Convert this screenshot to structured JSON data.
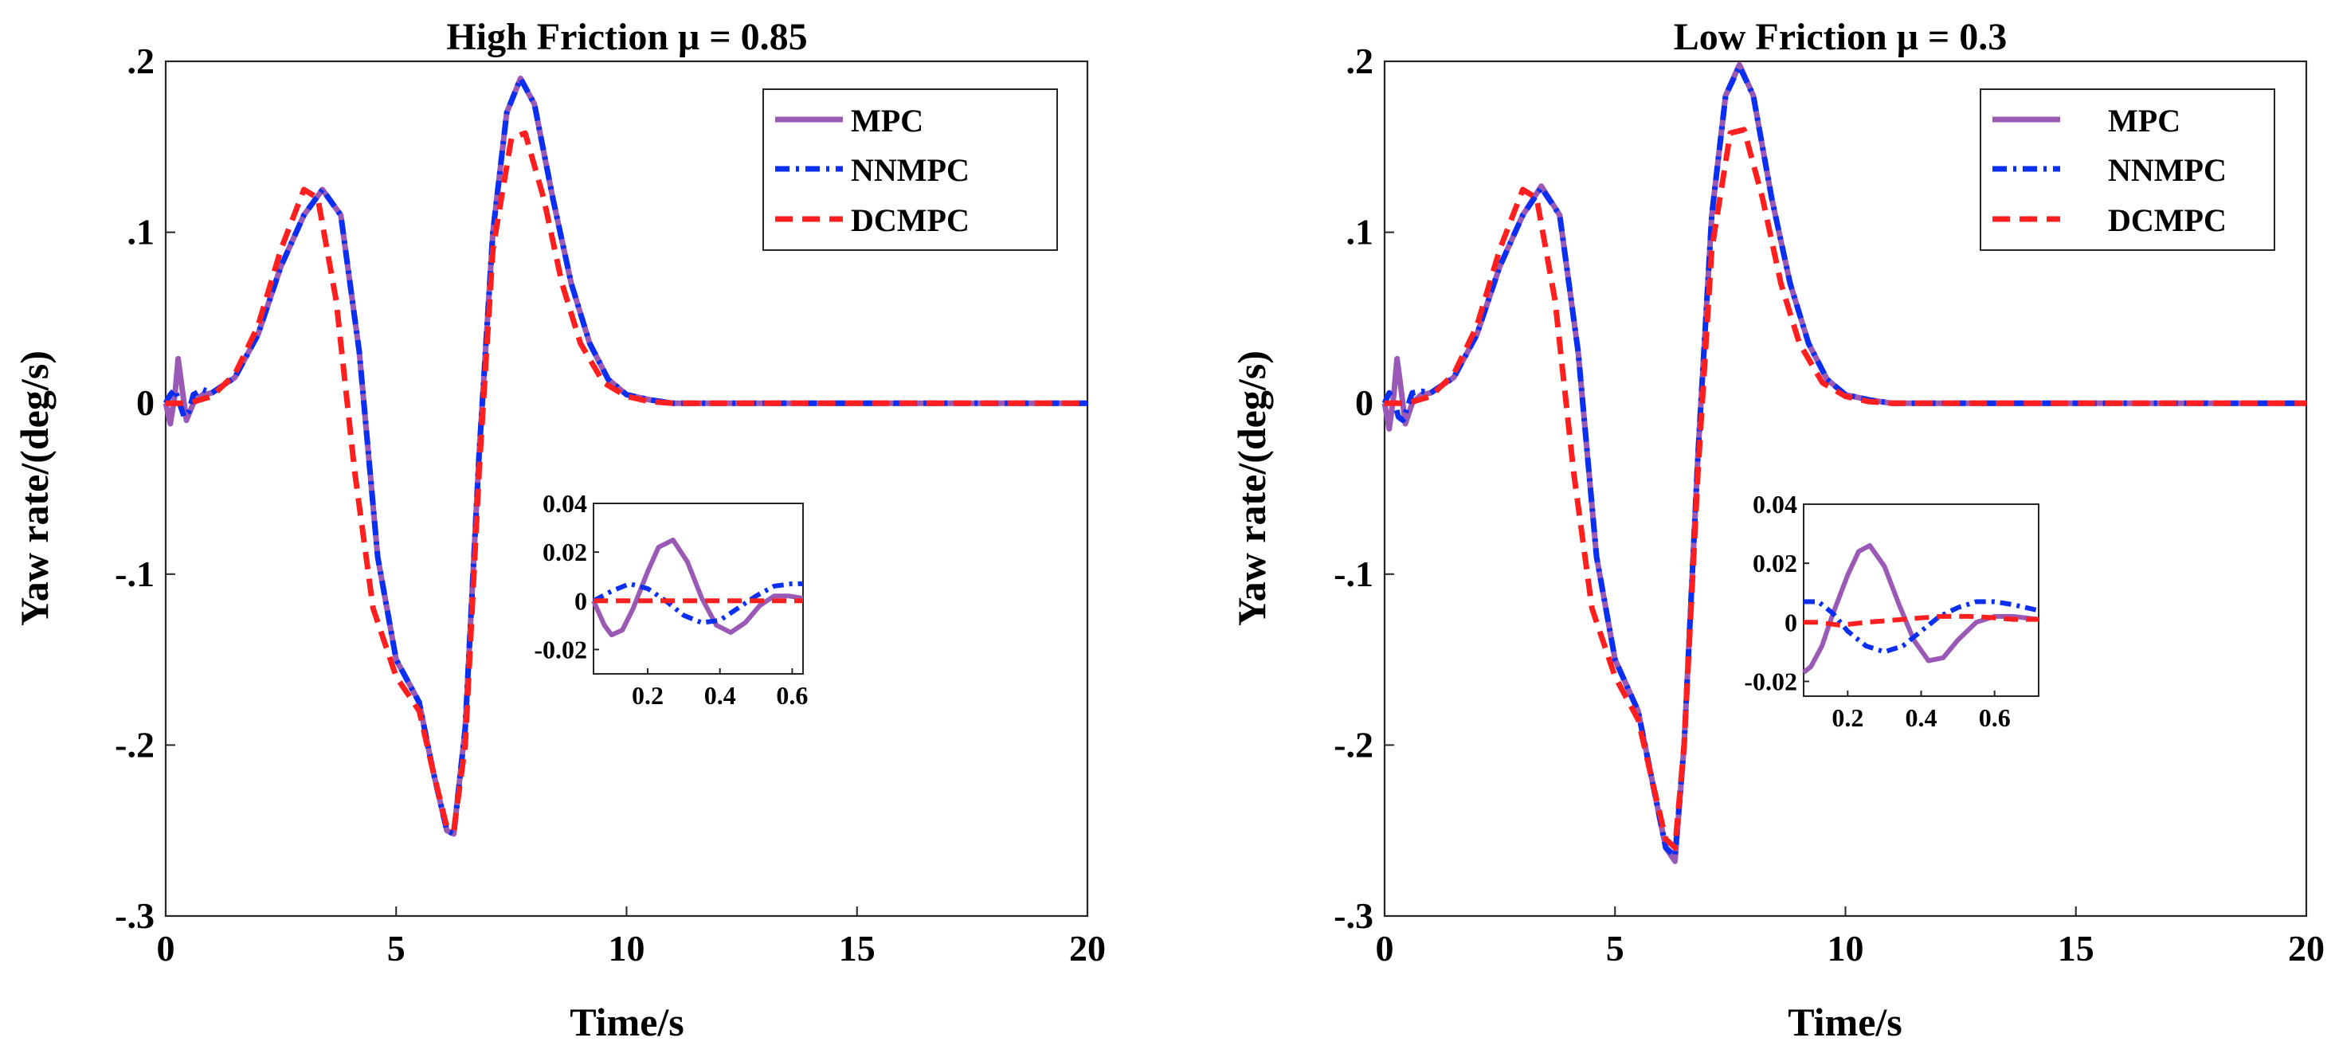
{
  "chart_data": [
    {
      "type": "line",
      "title": "High Friction μ = 0.85",
      "xlabel": "Time/s",
      "ylabel": "Yaw rate/(deg/s)",
      "xlim": [
        0,
        20
      ],
      "ylim": [
        -0.3,
        0.2
      ],
      "xticks": [
        0,
        5,
        10,
        15,
        20
      ],
      "yticks": [
        -0.3,
        -0.2,
        -0.1,
        0,
        0.1,
        0.2
      ],
      "grid": false,
      "legend_position": "top-right",
      "series": [
        {
          "name": "MPC",
          "color": "#9b59b6",
          "style": "solid",
          "x": [
            0,
            0.1,
            0.2,
            0.27,
            0.35,
            0.45,
            0.6,
            0.8,
            1,
            1.5,
            2,
            2.5,
            3,
            3.4,
            3.8,
            4.2,
            4.6,
            5,
            5.5,
            5.8,
            6.1,
            6.25,
            6.5,
            6.8,
            7.1,
            7.4,
            7.7,
            8,
            8.4,
            8.8,
            9.2,
            9.6,
            10,
            10.5,
            11,
            12,
            15,
            20
          ],
          "y": [
            0,
            -0.012,
            0.005,
            0.026,
            0.01,
            -0.01,
            0,
            0.005,
            0.006,
            0.015,
            0.04,
            0.08,
            0.11,
            0.125,
            0.11,
            0.03,
            -0.09,
            -0.15,
            -0.175,
            -0.215,
            -0.25,
            -0.252,
            -0.19,
            -0.03,
            0.1,
            0.17,
            0.19,
            0.175,
            0.12,
            0.07,
            0.035,
            0.014,
            0.005,
            0.002,
            0,
            0,
            0,
            0
          ]
        },
        {
          "name": "NNMPC",
          "color": "#0a2ff0",
          "style": "dashdot",
          "x": [
            0,
            0.1,
            0.2,
            0.3,
            0.4,
            0.5,
            0.6,
            0.8,
            1,
            1.5,
            2,
            2.5,
            3,
            3.4,
            3.8,
            4.2,
            4.6,
            5,
            5.5,
            5.8,
            6.1,
            6.25,
            6.5,
            6.8,
            7.1,
            7.4,
            7.7,
            8,
            8.4,
            8.8,
            9.2,
            9.6,
            10,
            10.5,
            11,
            12,
            15,
            20
          ],
          "y": [
            0,
            0.005,
            0.008,
            0,
            -0.008,
            -0.005,
            0.005,
            0.008,
            0.006,
            0.015,
            0.04,
            0.08,
            0.11,
            0.125,
            0.11,
            0.03,
            -0.09,
            -0.15,
            -0.175,
            -0.215,
            -0.25,
            -0.252,
            -0.19,
            -0.03,
            0.1,
            0.17,
            0.19,
            0.175,
            0.12,
            0.07,
            0.035,
            0.014,
            0.005,
            0.002,
            0,
            0,
            0,
            0
          ]
        },
        {
          "name": "DCMPC",
          "color": "#ff1f1f",
          "style": "dashed",
          "x": [
            0,
            0.5,
            1,
            1.5,
            2,
            2.5,
            3,
            3.3,
            3.7,
            4.1,
            4.5,
            5,
            5.5,
            5.8,
            6.1,
            6.25,
            6.5,
            6.8,
            7.1,
            7.5,
            7.8,
            8.2,
            8.6,
            9,
            9.5,
            10,
            10.5,
            11,
            12,
            15,
            20
          ],
          "y": [
            0,
            0,
            0.004,
            0.017,
            0.045,
            0.09,
            0.125,
            0.12,
            0.06,
            -0.04,
            -0.12,
            -0.16,
            -0.18,
            -0.215,
            -0.248,
            -0.25,
            -0.2,
            -0.04,
            0.09,
            0.155,
            0.158,
            0.12,
            0.07,
            0.035,
            0.012,
            0.004,
            0.001,
            0,
            0,
            0,
            0
          ]
        }
      ],
      "inset": {
        "xlim": [
          0.05,
          0.63
        ],
        "ylim": [
          -0.03,
          0.04
        ],
        "xticks": [
          0.2,
          0.4,
          0.6
        ],
        "yticks": [
          -0.02,
          0,
          0.02,
          0.04
        ],
        "series": [
          {
            "name": "MPC",
            "x": [
              0.05,
              0.08,
              0.1,
              0.13,
              0.16,
              0.2,
              0.23,
              0.27,
              0.31,
              0.35,
              0.39,
              0.43,
              0.47,
              0.51,
              0.55,
              0.59,
              0.63
            ],
            "y": [
              0,
              -0.01,
              -0.014,
              -0.012,
              -0.003,
              0.012,
              0.022,
              0.025,
              0.016,
              0.001,
              -0.01,
              -0.013,
              -0.009,
              -0.002,
              0.002,
              0.002,
              0.001
            ]
          },
          {
            "name": "NNMPC",
            "x": [
              0.05,
              0.1,
              0.15,
              0.2,
              0.25,
              0.3,
              0.35,
              0.4,
              0.45,
              0.5,
              0.55,
              0.6,
              0.63
            ],
            "y": [
              0,
              0.004,
              0.007,
              0.005,
              0,
              -0.006,
              -0.009,
              -0.008,
              -0.003,
              0.002,
              0.006,
              0.007,
              0.007
            ]
          },
          {
            "name": "DCMPC",
            "x": [
              0.05,
              0.2,
              0.4,
              0.6,
              0.63
            ],
            "y": [
              0,
              0,
              0,
              0,
              0
            ]
          }
        ]
      }
    },
    {
      "type": "line",
      "title": "Low Friction μ = 0.3",
      "xlabel": "Time/s",
      "ylabel": "Yaw rate/(deg/s)",
      "xlim": [
        0,
        20
      ],
      "ylim": [
        -0.3,
        0.2
      ],
      "xticks": [
        0,
        5,
        10,
        15,
        20
      ],
      "yticks": [
        -0.3,
        -0.2,
        -0.1,
        0,
        0.1,
        0.2
      ],
      "grid": false,
      "legend_position": "top-right",
      "series": [
        {
          "name": "MPC",
          "color": "#9b59b6",
          "style": "solid",
          "x": [
            0,
            0.1,
            0.2,
            0.27,
            0.35,
            0.45,
            0.6,
            0.8,
            1,
            1.5,
            2,
            2.5,
            3,
            3.4,
            3.8,
            4.2,
            4.6,
            5,
            5.5,
            5.8,
            6.1,
            6.3,
            6.5,
            6.8,
            7.1,
            7.4,
            7.7,
            8,
            8.4,
            8.8,
            9.2,
            9.6,
            10,
            10.5,
            11,
            12,
            15,
            20
          ],
          "y": [
            0,
            -0.015,
            0.005,
            0.026,
            0.01,
            -0.012,
            0,
            0.005,
            0.006,
            0.015,
            0.04,
            0.08,
            0.11,
            0.127,
            0.11,
            0.03,
            -0.09,
            -0.15,
            -0.18,
            -0.22,
            -0.26,
            -0.268,
            -0.2,
            -0.03,
            0.11,
            0.18,
            0.198,
            0.18,
            0.12,
            0.07,
            0.035,
            0.014,
            0.005,
            0.002,
            0,
            0,
            0,
            0
          ]
        },
        {
          "name": "NNMPC",
          "color": "#0a2ff0",
          "style": "dashdot",
          "x": [
            0,
            0.1,
            0.2,
            0.3,
            0.4,
            0.5,
            0.6,
            0.8,
            1,
            1.5,
            2,
            2.5,
            3,
            3.4,
            3.8,
            4.2,
            4.6,
            5,
            5.5,
            5.8,
            6.1,
            6.3,
            6.5,
            6.8,
            7.1,
            7.4,
            7.7,
            8,
            8.4,
            8.8,
            9.2,
            9.6,
            10,
            10.5,
            11,
            12,
            15,
            20
          ],
          "y": [
            0,
            0.006,
            0.002,
            -0.008,
            -0.01,
            -0.002,
            0.006,
            0.007,
            0.006,
            0.015,
            0.04,
            0.08,
            0.11,
            0.126,
            0.11,
            0.03,
            -0.09,
            -0.15,
            -0.18,
            -0.22,
            -0.26,
            -0.265,
            -0.2,
            -0.03,
            0.11,
            0.18,
            0.197,
            0.18,
            0.12,
            0.07,
            0.035,
            0.014,
            0.005,
            0.002,
            0,
            0,
            0,
            0
          ]
        },
        {
          "name": "DCMPC",
          "color": "#ff1f1f",
          "style": "dashed",
          "x": [
            0,
            0.5,
            1,
            1.5,
            2,
            2.5,
            3,
            3.3,
            3.7,
            4.1,
            4.5,
            5,
            5.5,
            5.8,
            6.1,
            6.3,
            6.5,
            6.8,
            7.1,
            7.5,
            7.8,
            8.2,
            8.6,
            9,
            9.5,
            10,
            10.5,
            11,
            12,
            15,
            20
          ],
          "y": [
            0,
            0,
            0.004,
            0.017,
            0.045,
            0.09,
            0.125,
            0.12,
            0.06,
            -0.04,
            -0.12,
            -0.16,
            -0.185,
            -0.22,
            -0.255,
            -0.26,
            -0.2,
            -0.04,
            0.09,
            0.158,
            0.16,
            0.12,
            0.07,
            0.035,
            0.012,
            0.004,
            0.001,
            0,
            0,
            0,
            0
          ]
        }
      ],
      "inset": {
        "xlim": [
          0.08,
          0.72
        ],
        "ylim": [
          -0.025,
          0.04
        ],
        "xticks": [
          0.2,
          0.4,
          0.6
        ],
        "yticks": [
          -0.02,
          0,
          0.02,
          0.04
        ],
        "series": [
          {
            "name": "MPC",
            "x": [
              0.08,
              0.1,
              0.13,
              0.16,
              0.2,
              0.23,
              0.26,
              0.3,
              0.34,
              0.38,
              0.42,
              0.46,
              0.5,
              0.55,
              0.6,
              0.65,
              0.72
            ],
            "y": [
              -0.017,
              -0.015,
              -0.008,
              0.003,
              0.016,
              0.024,
              0.026,
              0.019,
              0.006,
              -0.006,
              -0.013,
              -0.012,
              -0.006,
              0,
              0.002,
              0.002,
              0.001
            ]
          },
          {
            "name": "NNMPC",
            "x": [
              0.08,
              0.12,
              0.16,
              0.2,
              0.25,
              0.3,
              0.35,
              0.4,
              0.45,
              0.5,
              0.55,
              0.6,
              0.65,
              0.72
            ],
            "y": [
              0.007,
              0.007,
              0.003,
              -0.003,
              -0.008,
              -0.01,
              -0.008,
              -0.003,
              0.002,
              0.005,
              0.007,
              0.007,
              0.006,
              0.004
            ]
          },
          {
            "name": "DCMPC",
            "x": [
              0.08,
              0.12,
              0.18,
              0.25,
              0.35,
              0.45,
              0.55,
              0.65,
              0.72
            ],
            "y": [
              0,
              0,
              -0.001,
              0,
              0.001,
              0.002,
              0.002,
              0.001,
              0.001
            ]
          }
        ]
      }
    }
  ]
}
